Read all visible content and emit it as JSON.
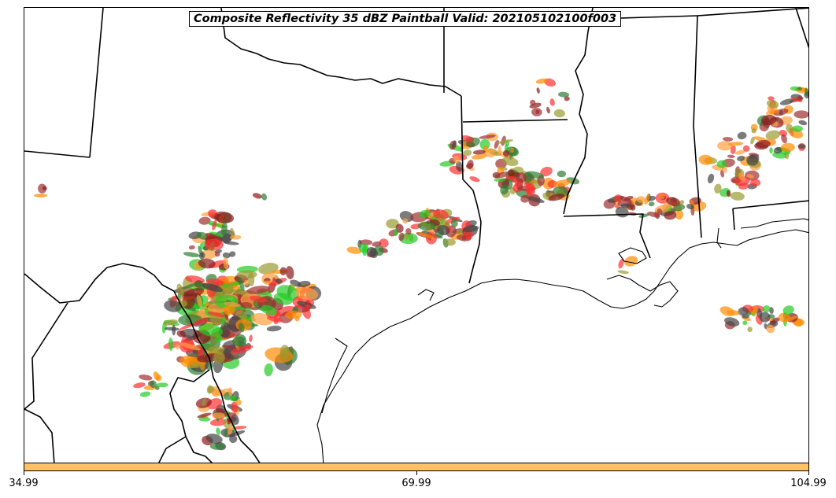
{
  "title": "Composite Reflectivity 35 dBZ Paintball Valid: 202105102100f003",
  "colorbar": {
    "color": "#ffc266",
    "ticks": [
      "34.99",
      "69.99",
      "104.99"
    ]
  },
  "map": {
    "region": "Texas, Louisiana, Mississippi, Alabama and Gulf of Mexico",
    "paintball_colors": {
      "red": "#ff3030",
      "orange": "#ff8c00",
      "light_orange": "#ffa040",
      "green": "#22cc22",
      "dark_green": "#2e7d32",
      "olive": "#9a9a30",
      "brown": "#8b1a1a",
      "dark_gray": "#444444",
      "maroon": "#a03030"
    }
  }
}
